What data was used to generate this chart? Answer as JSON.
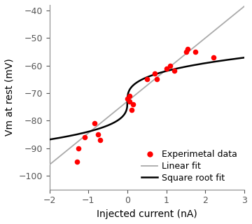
{
  "scatter_x": [
    -1.3,
    -1.25,
    -1.1,
    -0.85,
    -0.75,
    -0.7,
    0.0,
    0.05,
    0.05,
    0.1,
    0.15,
    0.5,
    0.7,
    0.75,
    1.0,
    1.1,
    1.2,
    1.5,
    1.55,
    1.75,
    2.2
  ],
  "scatter_y": [
    -95,
    -90,
    -86,
    -81,
    -85,
    -87,
    -72,
    -71,
    -73,
    -76,
    -74,
    -65,
    -63,
    -65,
    -61,
    -60,
    -62,
    -55,
    -54,
    -55,
    -57
  ],
  "xlim": [
    -2,
    3
  ],
  "ylim": [
    -105,
    -38
  ],
  "xticks": [
    -2,
    -1,
    0,
    1,
    2,
    3
  ],
  "yticks": [
    -100,
    -90,
    -80,
    -70,
    -60,
    -50,
    -40
  ],
  "xlabel": "Injected current (nA)",
  "ylabel": "Vm at rest (mV)",
  "scatter_color": "#ff0000",
  "scatter_size": 30,
  "linear_color": "#aaaaaa",
  "sqroot_color": "#000000",
  "linear_slope": 11.5,
  "linear_intercept": -73.0,
  "cbrt_a": 11.0,
  "cbrt_b": -73.0,
  "legend_labels": [
    "Experimetal data",
    "Linear fit",
    "Square root fit"
  ],
  "bg_color": "#ffffff",
  "fontsize": 10,
  "figsize": [
    3.6,
    3.2
  ],
  "dpi": 100
}
